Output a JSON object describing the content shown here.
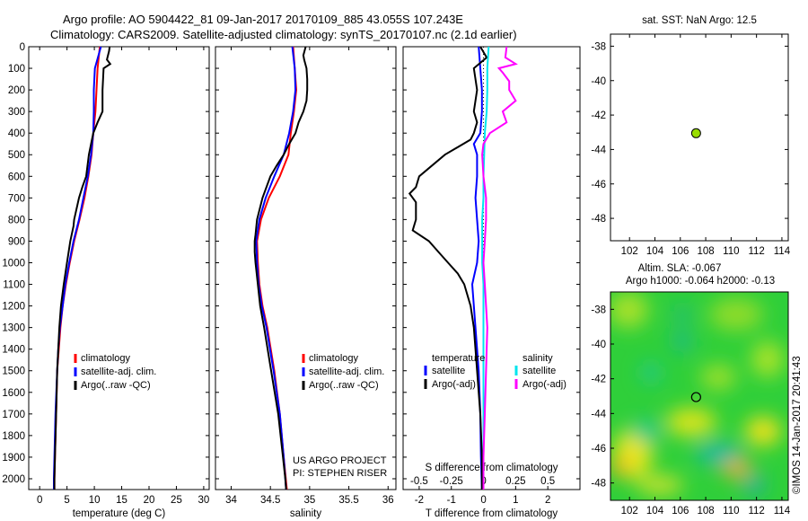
{
  "header": {
    "line1": "Argo profile: AO 5904422_81 09-Jan-2017 20170109_885 43.055S 107.243E",
    "line2": "Climatology: CARS2009. Satellite-adjusted climatology: synTS_20170107.nc (2.1d earlier)"
  },
  "depth_axis": {
    "ylim": [
      0,
      2050
    ],
    "ticks": [
      0,
      100,
      200,
      300,
      400,
      500,
      600,
      700,
      800,
      900,
      1000,
      1100,
      1200,
      1300,
      1400,
      1500,
      1600,
      1700,
      1800,
      1900,
      2000
    ]
  },
  "colors": {
    "climatology": "#ff0000",
    "satellite": "#0000ff",
    "argo": "#000000",
    "salinity_satellite": "#00e5ee",
    "salinity_argo": "#ff00ff",
    "marker": "#99dd00"
  },
  "chart_data": [
    {
      "type": "line",
      "panel": "temperature",
      "xlabel": "temperature (deg C)",
      "xlim": [
        -2,
        31
      ],
      "xticks": [
        0,
        5,
        10,
        15,
        20,
        25,
        30
      ],
      "legend": {
        "placement": "lower-left",
        "entries": [
          "climatology",
          "satellite-adj. clim.",
          "Argo(..raw -QC)"
        ]
      },
      "series": [
        {
          "name": "climatology",
          "color": "#ff0000",
          "depth": [
            0,
            100,
            200,
            300,
            400,
            500,
            600,
            700,
            800,
            900,
            1000,
            1100,
            1200,
            1300,
            1400,
            1500,
            1700,
            2000,
            2050
          ],
          "values": [
            11.0,
            10.6,
            10.4,
            10.2,
            9.8,
            9.5,
            8.9,
            8.2,
            7.3,
            6.3,
            5.5,
            4.8,
            4.2,
            3.8,
            3.5,
            3.2,
            3.0,
            2.7,
            2.7
          ]
        },
        {
          "name": "satellite-adj. clim.",
          "color": "#0000ff",
          "depth": [
            0,
            100,
            200,
            300,
            400,
            500,
            600,
            700,
            800,
            900,
            1000,
            1100,
            1200,
            1300,
            1400,
            1500,
            1700,
            2000,
            2050
          ],
          "values": [
            11.2,
            10.1,
            9.9,
            9.9,
            9.8,
            9.4,
            8.8,
            8.0,
            7.2,
            6.2,
            5.4,
            4.7,
            4.2,
            3.7,
            3.4,
            3.2,
            2.9,
            2.6,
            2.6
          ]
        },
        {
          "name": "Argo(..raw -QC)",
          "color": "#000000",
          "depth": [
            0,
            20,
            60,
            80,
            100,
            200,
            300,
            350,
            400,
            500,
            600,
            650,
            700,
            800,
            830,
            900,
            1000,
            1100,
            1200,
            1300,
            1400,
            1500,
            1700,
            1900,
            2000,
            2050
          ],
          "values": [
            12.8,
            12.7,
            12.3,
            12.9,
            11.7,
            11.5,
            11.5,
            10.6,
            9.8,
            9.0,
            8.5,
            7.8,
            7.2,
            6.3,
            6.2,
            5.6,
            5.0,
            4.4,
            3.9,
            3.6,
            3.4,
            3.2,
            3.0,
            2.8,
            2.7,
            2.7
          ]
        }
      ]
    },
    {
      "type": "line",
      "panel": "salinity",
      "xlabel": "salinity",
      "xlim": [
        33.8,
        36.1
      ],
      "xticks": [
        34,
        34.5,
        35,
        35.5,
        36
      ],
      "legend": {
        "placement": "lower-right",
        "entries": [
          "climatology",
          "satellite-adj. clim.",
          "Argo(..raw -QC)"
        ]
      },
      "annotations": [
        "US ARGO PROJECT",
        "PI: STEPHEN RISER"
      ],
      "series": [
        {
          "name": "climatology",
          "color": "#ff0000",
          "depth": [
            0,
            100,
            200,
            300,
            400,
            500,
            600,
            700,
            800,
            900,
            1000,
            1100,
            1200,
            1300,
            1500,
            1700,
            1900,
            2050
          ],
          "values": [
            34.79,
            34.81,
            34.83,
            34.8,
            34.76,
            34.73,
            34.62,
            34.48,
            34.38,
            34.33,
            34.34,
            34.36,
            34.4,
            34.46,
            34.55,
            34.62,
            34.67,
            34.71
          ]
        },
        {
          "name": "satellite-adj. clim.",
          "color": "#0000ff",
          "depth": [
            0,
            100,
            200,
            300,
            400,
            500,
            600,
            700,
            800,
            900,
            1000,
            1100,
            1200,
            1300,
            1500,
            1700,
            1900,
            2050
          ],
          "values": [
            34.78,
            34.81,
            34.82,
            34.79,
            34.74,
            34.67,
            34.55,
            34.44,
            34.36,
            34.32,
            34.33,
            34.35,
            34.39,
            34.45,
            34.54,
            34.62,
            34.67,
            34.7
          ]
        },
        {
          "name": "Argo(..raw -QC)",
          "color": "#000000",
          "depth": [
            0,
            40,
            60,
            100,
            150,
            200,
            250,
            300,
            350,
            400,
            450,
            500,
            550,
            600,
            700,
            800,
            870,
            900,
            950,
            1000,
            1100,
            1200,
            1300,
            1500,
            1700,
            1900,
            2000,
            2050
          ],
          "values": [
            34.95,
            34.92,
            34.93,
            34.96,
            34.97,
            34.97,
            34.96,
            34.92,
            34.86,
            34.82,
            34.74,
            34.67,
            34.58,
            34.5,
            34.4,
            34.33,
            34.31,
            34.3,
            34.3,
            34.31,
            34.34,
            34.37,
            34.42,
            34.51,
            34.6,
            34.66,
            34.69,
            34.7
          ]
        }
      ]
    },
    {
      "type": "line",
      "panel": "difference",
      "xlabel": "T difference from climatology",
      "xlabel_top": "S difference from climatology",
      "xlim": [
        -2.5,
        3.0
      ],
      "xticks": [
        -2,
        -1,
        0,
        1,
        2
      ],
      "xticks_top": {
        "labels": [
          "-0.5",
          "-0.25",
          "0",
          "0.25",
          "0.5"
        ],
        "values": [
          -0.5,
          -0.25,
          0,
          0.25,
          0.5
        ]
      },
      "s_scale": 4,
      "zero_line": "dotted",
      "legend": {
        "placement": "lower-center",
        "groups": [
          "temperature",
          "salinity"
        ],
        "entries": [
          "satellite",
          "Argo(-adj)",
          "satellite",
          "Argo(-adj)"
        ]
      },
      "series": [
        {
          "name": "satellite",
          "group": "temperature",
          "color": "#0000ff",
          "depth": [
            0,
            100,
            200,
            300,
            400,
            450,
            500,
            600,
            700,
            800,
            900,
            1000,
            1100,
            1200,
            1300,
            1500,
            1700,
            1900,
            2050
          ],
          "values": [
            -0.15,
            -0.1,
            -0.05,
            -0.05,
            -0.1,
            -0.3,
            -0.2,
            -0.2,
            -0.25,
            -0.2,
            -0.15,
            -0.2,
            -0.35,
            -0.3,
            -0.25,
            -0.15,
            -0.1,
            -0.08,
            -0.05
          ]
        },
        {
          "name": "Argo(-adj)",
          "group": "temperature",
          "color": "#000000",
          "depth": [
            0,
            50,
            100,
            200,
            300,
            350,
            400,
            430,
            500,
            550,
            600,
            650,
            680,
            720,
            800,
            850,
            900,
            950,
            1000,
            1050,
            1100,
            1200,
            1300,
            1500,
            1700,
            1900,
            2050
          ],
          "values": [
            -0.1,
            0.1,
            -0.3,
            -0.2,
            -0.3,
            -0.2,
            -0.3,
            -0.4,
            -1.2,
            -1.6,
            -2.0,
            -2.1,
            -2.3,
            -2.1,
            -2.1,
            -2.2,
            -1.7,
            -1.4,
            -1.1,
            -0.8,
            -0.6,
            -0.4,
            -0.3,
            -0.2,
            -0.1,
            -0.05,
            -0.05
          ]
        },
        {
          "name": "satellite",
          "group": "salinity",
          "color": "#00e5ee",
          "depth": [
            0,
            100,
            200,
            300,
            400,
            500,
            600,
            700,
            800,
            900,
            1000,
            1100,
            1200,
            1400,
            1600,
            1800,
            2050
          ],
          "values": [
            0.04,
            0.03,
            0.03,
            0.025,
            0.01,
            0.005,
            0.0,
            0.0,
            -0.01,
            -0.01,
            -0.01,
            0.0,
            0.0,
            0.0,
            0.0,
            0.0,
            0.0
          ]
        },
        {
          "name": "Argo(-adj)",
          "group": "salinity",
          "color": "#ff00ff",
          "depth": [
            0,
            50,
            80,
            100,
            120,
            160,
            200,
            250,
            300,
            350,
            400,
            450,
            500,
            600,
            700,
            800,
            900,
            1000,
            1100,
            1200,
            1300,
            1500,
            1700,
            1900,
            2050
          ],
          "values": [
            0.18,
            0.17,
            0.25,
            0.12,
            0.15,
            0.2,
            0.2,
            0.25,
            0.15,
            0.18,
            0.05,
            0.0,
            -0.01,
            0.0,
            0.02,
            0.02,
            0.01,
            0.0,
            0.01,
            0.02,
            0.03,
            0.02,
            0.01,
            0.0,
            0.0
          ]
        }
      ]
    },
    {
      "type": "scatter",
      "panel": "location",
      "title": "sat. SST: NaN Argo: 12.5",
      "xlim": [
        100.5,
        114.5
      ],
      "ylim": [
        -49.3,
        -37.3
      ],
      "xticks": [
        102,
        104,
        106,
        108,
        110,
        112,
        114
      ],
      "yticks": [
        -38,
        -40,
        -42,
        -44,
        -46,
        -48
      ],
      "points": [
        {
          "x": 107.243,
          "y": -43.055
        }
      ]
    },
    {
      "type": "heatmap",
      "panel": "altimetry",
      "title_line1": "Altim. SLA: -0.067",
      "title_line2": "Argo h1000: -0.064 h2000: -0.13",
      "xlim": [
        100.5,
        114.5
      ],
      "ylim": [
        -49.0,
        -37.0
      ],
      "xticks": [
        102,
        104,
        106,
        108,
        110,
        112,
        114
      ],
      "yticks": [
        -38,
        -40,
        -42,
        -44,
        -46,
        -48
      ],
      "points": [
        {
          "x": 107.243,
          "y": -43.055
        }
      ]
    }
  ],
  "credit": "©IMOS 14-Jan-2017 20:41:43"
}
